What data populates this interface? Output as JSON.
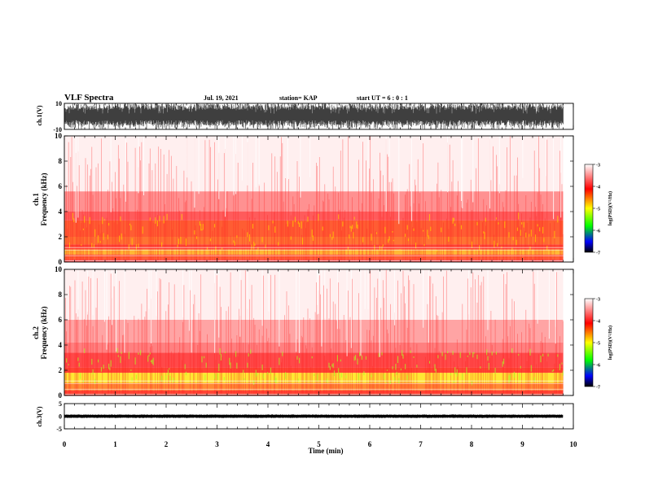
{
  "header": {
    "title": "VLF Spectra",
    "date": "Jul. 19, 2021",
    "station": "station= KAP",
    "start": "start  UT  =   6  : 0  : 1"
  },
  "chart_data": [
    {
      "type": "line",
      "panel": "ch1-waveform",
      "ylabel": "ch.1(V)",
      "ylim": [
        -10,
        10
      ],
      "yticks": [
        "10",
        "-10"
      ],
      "color": "#000000"
    },
    {
      "type": "heatmap",
      "panel": "ch1-spectrogram",
      "ylabel": "ch.1\nFrequency (kHz)",
      "ylim": [
        0,
        10
      ],
      "yticks": [
        "0",
        "2",
        "4",
        "6",
        "8",
        "10"
      ],
      "bands": [
        {
          "from": 0,
          "to": 0.2,
          "level": -4.0
        },
        {
          "from": 0.2,
          "to": 0.6,
          "level": -4.3
        },
        {
          "from": 0.6,
          "to": 1.0,
          "level": -4.7
        },
        {
          "from": 1.0,
          "to": 1.4,
          "level": -4.2
        },
        {
          "from": 1.4,
          "to": 2.0,
          "level": -4.4
        },
        {
          "from": 2.0,
          "to": 3.3,
          "level": -4.3
        },
        {
          "from": 3.3,
          "to": 4.0,
          "level": -3.9
        },
        {
          "from": 4.0,
          "to": 5.6,
          "level": -3.6
        },
        {
          "from": 5.6,
          "to": 10.0,
          "level": -3.2
        }
      ],
      "colorbar": {
        "label": "log(PSD)(V²/Hz)",
        "range": [
          -7,
          -3
        ],
        "ticks": [
          "-3",
          "-4",
          "-5",
          "-6",
          "-7"
        ],
        "stops": [
          "#ffffff",
          "#ff0000",
          "#ffff00",
          "#00ff00",
          "#0000ff",
          "#000000"
        ]
      }
    },
    {
      "type": "heatmap",
      "panel": "ch2-spectrogram",
      "ylabel": "ch.2\nFrequency (kHz)",
      "ylim": [
        0,
        10
      ],
      "yticks": [
        "0",
        "2",
        "4",
        "6",
        "8",
        "10"
      ],
      "bands": [
        {
          "from": 0,
          "to": 0.4,
          "level": -4.2
        },
        {
          "from": 0.4,
          "to": 1.0,
          "level": -4.5
        },
        {
          "from": 1.0,
          "to": 1.8,
          "level": -4.9
        },
        {
          "from": 1.8,
          "to": 2.2,
          "level": -4.2
        },
        {
          "from": 2.2,
          "to": 3.4,
          "level": -4.0
        },
        {
          "from": 3.4,
          "to": 4.2,
          "level": -3.7
        },
        {
          "from": 4.2,
          "to": 6.0,
          "level": -3.5
        },
        {
          "from": 6.0,
          "to": 10.0,
          "level": -3.2
        }
      ],
      "colorbar": {
        "label": "log(PSD)(V²/Hz)",
        "range": [
          -7,
          -3
        ],
        "ticks": [
          "-3",
          "-4",
          "-5",
          "-6",
          "-7"
        ],
        "stops": [
          "#ffffff",
          "#ff0000",
          "#ffff00",
          "#00ff00",
          "#0000ff",
          "#000000"
        ]
      }
    },
    {
      "type": "line",
      "panel": "ch3-waveform",
      "ylabel": "ch.3(V)",
      "ylim": [
        -5,
        5
      ],
      "yticks": [
        "5",
        "0",
        "-5"
      ],
      "data_range": [
        -0.5,
        0.5
      ],
      "color": "#000000"
    },
    {
      "type": "axis",
      "panel": "time-axis",
      "xlabel": "Time (min)",
      "xlim": [
        0,
        10
      ],
      "xticks": [
        "0",
        "1",
        "2",
        "3",
        "4",
        "5",
        "6",
        "7",
        "8",
        "9",
        "10"
      ],
      "data_end": 9.8
    }
  ]
}
